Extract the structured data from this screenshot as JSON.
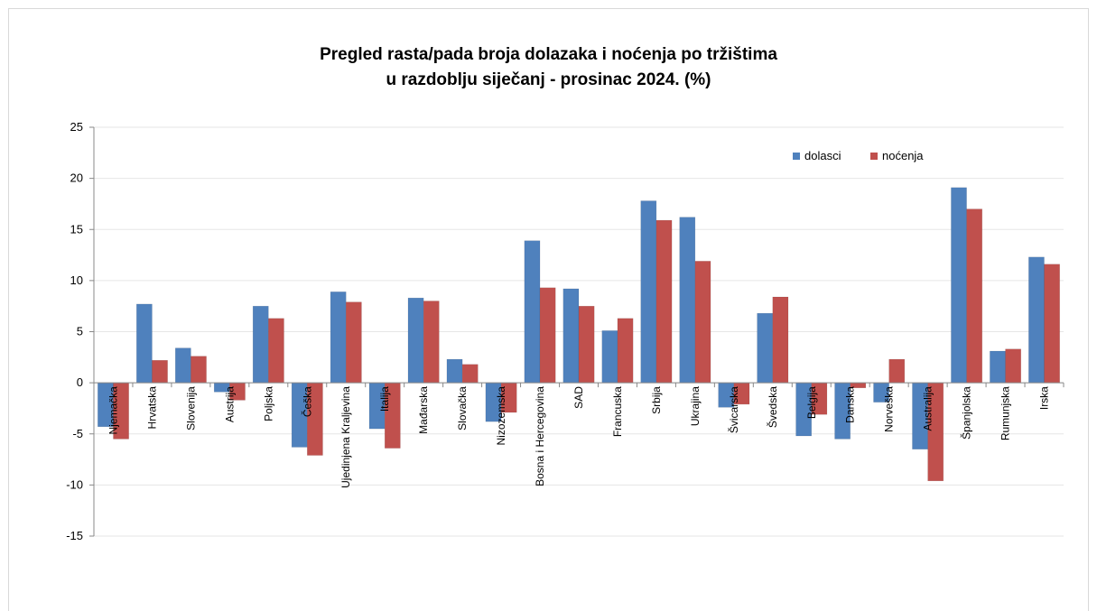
{
  "chart_data": {
    "type": "bar",
    "title": "Pregled rasta/pada broja dolazaka i noćenja po tržištima",
    "subtitle": "u razdoblju siječanj - prosinac 2024. (%)",
    "xlabel": "",
    "ylabel": "",
    "ylim": [
      -15,
      25
    ],
    "yticks": [
      25,
      20,
      15,
      10,
      5,
      0,
      -5,
      -10,
      -15
    ],
    "grid": true,
    "legend_position": "top-right",
    "categories": [
      "Njemačka",
      "Hrvatska",
      "Slovenija",
      "Austrija",
      "Poljska",
      "Češka",
      "Ujedinjena Kraljevina",
      "Italija",
      "Mađarska",
      "Slovačka",
      "Nizozemska",
      "Bosna i Hercegovina",
      "SAD",
      "Francuska",
      "Srbija",
      "Ukrajina",
      "Švicarska",
      "Švedska",
      "Belgija",
      "Danska",
      "Norveška",
      "Australija",
      "Španjolska",
      "Rumunjska",
      "Irska"
    ],
    "series": [
      {
        "name": "dolasci",
        "color": "#4f81bd",
        "values": [
          -4.3,
          7.7,
          3.4,
          -0.9,
          7.5,
          -6.3,
          8.9,
          -4.5,
          8.3,
          2.3,
          -3.8,
          13.9,
          9.2,
          5.1,
          17.8,
          16.2,
          -2.4,
          6.8,
          -5.2,
          -5.5,
          -1.9,
          -6.5,
          19.1,
          3.1,
          12.3
        ]
      },
      {
        "name": "noćenja",
        "color": "#c0504d",
        "values": [
          -5.5,
          2.2,
          2.6,
          -1.7,
          6.3,
          -7.1,
          7.9,
          -6.4,
          8.0,
          1.8,
          -2.9,
          9.3,
          7.5,
          6.3,
          15.9,
          11.9,
          -2.1,
          8.4,
          -3.1,
          -0.5,
          2.3,
          -9.6,
          17.0,
          3.3,
          11.6
        ]
      }
    ]
  }
}
